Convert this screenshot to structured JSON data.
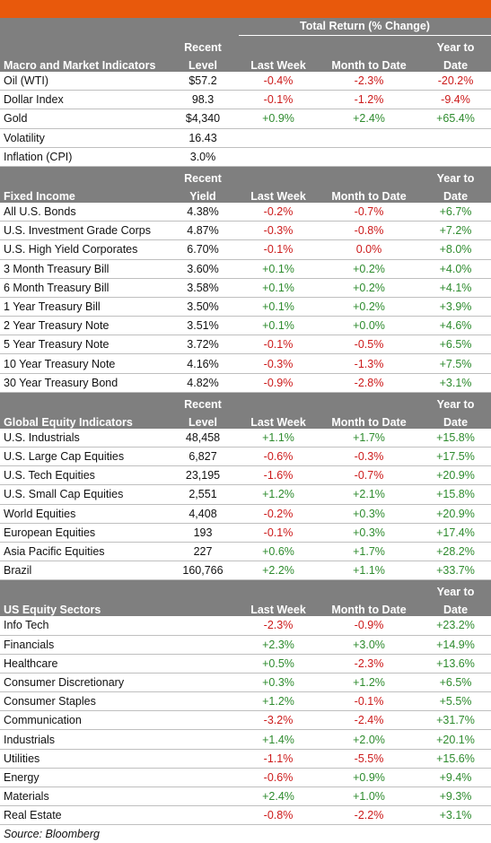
{
  "header": {
    "total_return": "Total Return (% Change)"
  },
  "sections": [
    {
      "title": "Macro and Market Indicators",
      "level_top": "Recent",
      "level_bottom": "Level",
      "last_week": "Last Week",
      "mtd": "Month to Date",
      "ytd_top": "Year to",
      "ytd_bottom": "Date",
      "rows": [
        {
          "name": "Oil (WTI)",
          "level": "$57.2",
          "week": "-0.4%",
          "mtd": "-2.3%",
          "ytd": "-20.2%"
        },
        {
          "name": "Dollar Index",
          "level": "98.3",
          "week": "-0.1%",
          "mtd": "-1.2%",
          "ytd": "-9.4%"
        },
        {
          "name": "Gold",
          "level": "$4,340",
          "week": "+0.9%",
          "mtd": "+2.4%",
          "ytd": "+65.4%"
        },
        {
          "name": "Volatility",
          "level": "16.43",
          "week": "",
          "mtd": "",
          "ytd": ""
        },
        {
          "name": "Inflation (CPI)",
          "level": "3.0%",
          "week": "",
          "mtd": "",
          "ytd": ""
        }
      ]
    },
    {
      "title": "Fixed Income",
      "level_top": "Recent",
      "level_bottom": "Yield",
      "last_week": "Last Week",
      "mtd": "Month to Date",
      "ytd_top": "Year to",
      "ytd_bottom": "Date",
      "rows": [
        {
          "name": "All U.S. Bonds",
          "level": "4.38%",
          "week": "-0.2%",
          "mtd": "-0.7%",
          "ytd": "+6.7%"
        },
        {
          "name": "U.S. Investment Grade Corps",
          "level": "4.87%",
          "week": "-0.3%",
          "mtd": "-0.8%",
          "ytd": "+7.2%"
        },
        {
          "name": "U.S. High Yield Corporates",
          "level": "6.70%",
          "week": "-0.1%",
          "mtd": "0.0%",
          "ytd": "+8.0%"
        },
        {
          "name": "3 Month Treasury Bill",
          "level": "3.60%",
          "week": "+0.1%",
          "mtd": "+0.2%",
          "ytd": "+4.0%"
        },
        {
          "name": "6 Month Treasury Bill",
          "level": "3.58%",
          "week": "+0.1%",
          "mtd": "+0.2%",
          "ytd": "+4.1%"
        },
        {
          "name": "1 Year Treasury Bill",
          "level": "3.50%",
          "week": "+0.1%",
          "mtd": "+0.2%",
          "ytd": "+3.9%"
        },
        {
          "name": "2 Year Treasury Note",
          "level": "3.51%",
          "week": "+0.1%",
          "mtd": "+0.0%",
          "ytd": "+4.6%"
        },
        {
          "name": "5 Year Treasury Note",
          "level": "3.72%",
          "week": "-0.1%",
          "mtd": "-0.5%",
          "ytd": "+6.5%"
        },
        {
          "name": "10 Year Treasury Note",
          "level": "4.16%",
          "week": "-0.3%",
          "mtd": "-1.3%",
          "ytd": "+7.5%"
        },
        {
          "name": "30 Year Treasury Bond",
          "level": "4.82%",
          "week": "-0.9%",
          "mtd": "-2.8%",
          "ytd": "+3.1%"
        }
      ]
    },
    {
      "title": "Global Equity Indicators",
      "level_top": "Recent",
      "level_bottom": "Level",
      "last_week": "Last Week",
      "mtd": "Month to Date",
      "ytd_top": "Year to",
      "ytd_bottom": "Date",
      "rows": [
        {
          "name": "U.S. Industrials",
          "level": "48,458",
          "week": "+1.1%",
          "mtd": "+1.7%",
          "ytd": "+15.8%"
        },
        {
          "name": "U.S. Large Cap Equities",
          "level": "6,827",
          "week": "-0.6%",
          "mtd": "-0.3%",
          "ytd": "+17.5%"
        },
        {
          "name": "U.S. Tech Equities",
          "level": "23,195",
          "week": "-1.6%",
          "mtd": "-0.7%",
          "ytd": "+20.9%"
        },
        {
          "name": "U.S. Small Cap Equities",
          "level": "2,551",
          "week": "+1.2%",
          "mtd": "+2.1%",
          "ytd": "+15.8%"
        },
        {
          "name": "World Equities",
          "level": "4,408",
          "week": "-0.2%",
          "mtd": "+0.3%",
          "ytd": "+20.9%"
        },
        {
          "name": "European Equities",
          "level": "193",
          "week": "-0.1%",
          "mtd": "+0.3%",
          "ytd": "+17.4%"
        },
        {
          "name": "Asia Pacific Equities",
          "level": "227",
          "week": "+0.6%",
          "mtd": "+1.7%",
          "ytd": "+28.2%"
        },
        {
          "name": "Brazil",
          "level": "160,766",
          "week": "+2.2%",
          "mtd": "+1.1%",
          "ytd": "+33.7%"
        }
      ]
    },
    {
      "title": "US Equity Sectors",
      "level_top": "",
      "level_bottom": "",
      "last_week": "Last Week",
      "mtd": "Month to Date",
      "ytd_top": "Year to",
      "ytd_bottom": "Date",
      "rows": [
        {
          "name": "Info Tech",
          "level": "",
          "week": "-2.3%",
          "mtd": "-0.9%",
          "ytd": "+23.2%"
        },
        {
          "name": "Financials",
          "level": "",
          "week": "+2.3%",
          "mtd": "+3.0%",
          "ytd": "+14.9%"
        },
        {
          "name": "Healthcare",
          "level": "",
          "week": "+0.5%",
          "mtd": "-2.3%",
          "ytd": "+13.6%"
        },
        {
          "name": "Consumer Discretionary",
          "level": "",
          "week": "+0.3%",
          "mtd": "+1.2%",
          "ytd": "+6.5%"
        },
        {
          "name": "Consumer Staples",
          "level": "",
          "week": "+1.2%",
          "mtd": "-0.1%",
          "ytd": "+5.5%"
        },
        {
          "name": "Communication",
          "level": "",
          "week": "-3.2%",
          "mtd": "-2.4%",
          "ytd": "+31.7%"
        },
        {
          "name": "Industrials",
          "level": "",
          "week": "+1.4%",
          "mtd": "+2.0%",
          "ytd": "+20.1%"
        },
        {
          "name": "Utilities",
          "level": "",
          "week": "-1.1%",
          "mtd": "-5.5%",
          "ytd": "+15.6%"
        },
        {
          "name": "Energy",
          "level": "",
          "week": "-0.6%",
          "mtd": "+0.9%",
          "ytd": "+9.4%"
        },
        {
          "name": "Materials",
          "level": "",
          "week": "+2.4%",
          "mtd": "+1.0%",
          "ytd": "+9.3%"
        },
        {
          "name": "Real Estate",
          "level": "",
          "week": "-0.8%",
          "mtd": "-2.2%",
          "ytd": "+3.1%"
        }
      ]
    }
  ],
  "source": "Source: Bloomberg",
  "colors": {
    "accent_bar": "#e8590c",
    "header_bg": "#7f7f7f",
    "positive": "#2e8b2e",
    "negative": "#cc1a1a"
  }
}
